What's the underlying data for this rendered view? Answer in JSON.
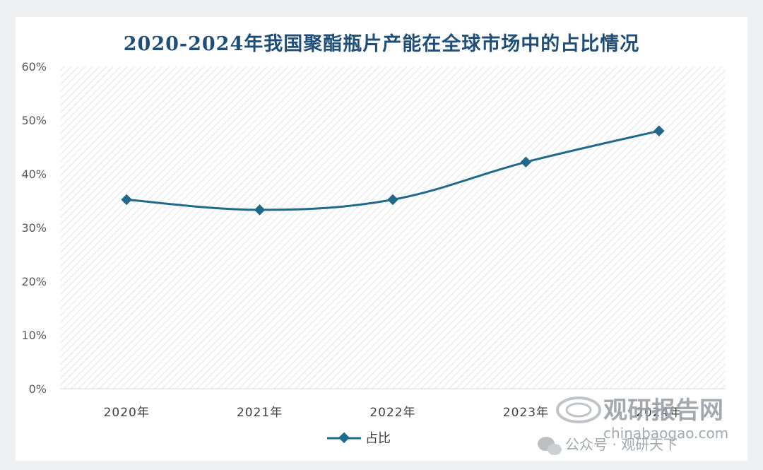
{
  "chart_data": {
    "type": "line",
    "title": "2020-2024年我国聚酯瓶片产能在全球市场中的占比情况",
    "categories": [
      "2020年",
      "2021年",
      "2022年",
      "2023年",
      "2024年"
    ],
    "series": [
      {
        "name": "占比",
        "values": [
          35.2,
          33.3,
          35.2,
          42.2,
          48.0
        ]
      }
    ],
    "ylim": [
      0,
      60
    ],
    "yticks": [
      "0%",
      "10%",
      "20%",
      "30%",
      "40%",
      "50%",
      "60%"
    ],
    "ytick_values": [
      0,
      10,
      20,
      30,
      40,
      50,
      60
    ],
    "legend_position": "bottom",
    "grid": false,
    "colors": {
      "line": "#1f6a8a",
      "title": "#1f4e79",
      "plot_hatch": "#e4e6e8"
    }
  },
  "watermark": {
    "logo_text": "观研报告网",
    "url": "chinabaogao.com",
    "wechat_text": "公众号 · 观研天下"
  }
}
